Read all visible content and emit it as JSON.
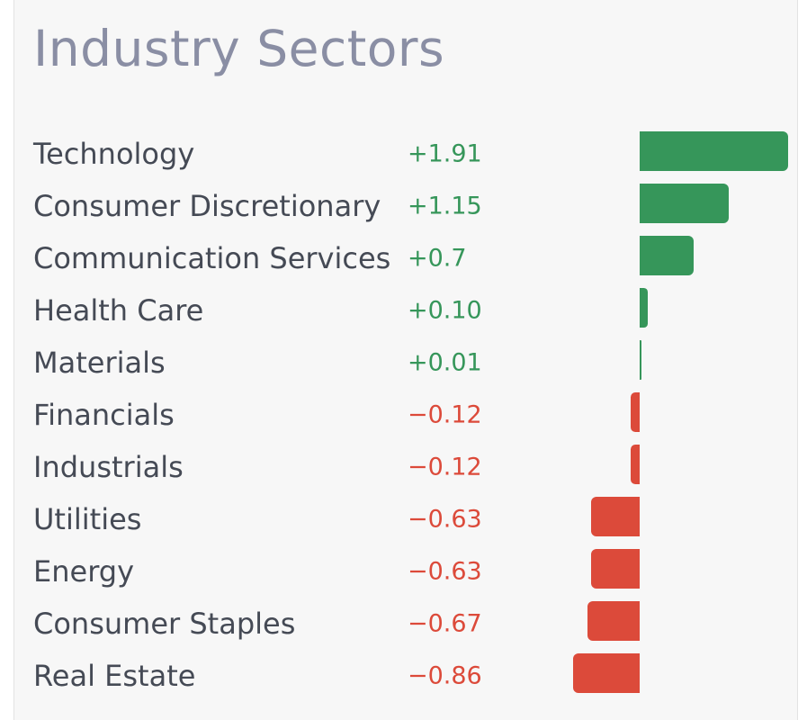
{
  "colors": {
    "positive": "#36965a",
    "negative": "#dc4a3a"
  },
  "chart_data": {
    "type": "bar",
    "orientation": "horizontal",
    "title": "Industry Sectors",
    "categories": [
      "Technology",
      "Consumer Discretionary",
      "Communication Services",
      "Health Care",
      "Materials",
      "Financials",
      "Industrials",
      "Utilities",
      "Energy",
      "Consumer Staples",
      "Real Estate"
    ],
    "value_labels": [
      "+1.91",
      "+1.15",
      "+0.7",
      "+0.10",
      "+0.01",
      "−0.12",
      "−0.12",
      "−0.63",
      "−0.63",
      "−0.67",
      "−0.86"
    ],
    "values": [
      1.91,
      1.15,
      0.7,
      0.1,
      0.01,
      -0.12,
      -0.12,
      -0.63,
      -0.63,
      -0.67,
      -0.86
    ],
    "xlim": [
      -1.1,
      1.91
    ],
    "grid": false,
    "legend": "none"
  }
}
